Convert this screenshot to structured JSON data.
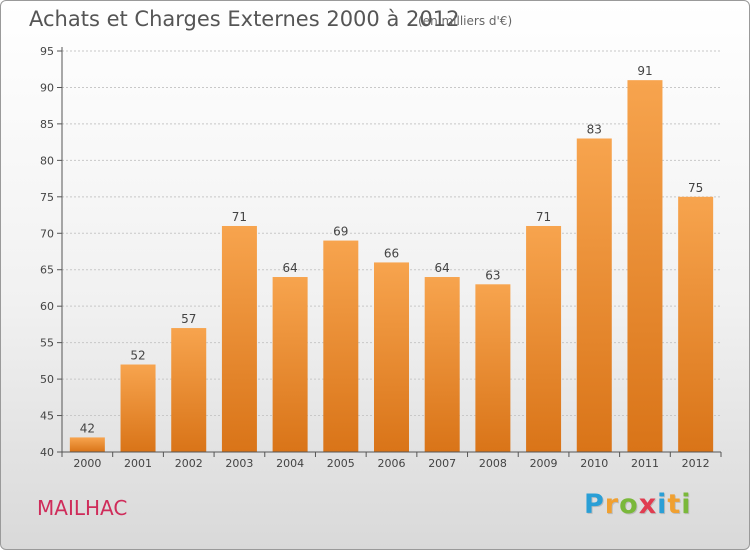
{
  "title": "Achats et Charges Externes 2000 à 2012",
  "subtitle": "(en milliers d'€)",
  "commune": "MAILHAC",
  "logo": {
    "letters": [
      "P",
      "r",
      "o",
      "x",
      "i",
      "t",
      "i"
    ],
    "colors": [
      "#2a9fd6",
      "#f0a030",
      "#7ab83a",
      "#e03c50",
      "#2a9fd6",
      "#f0a030",
      "#7ab83a"
    ]
  },
  "colors": {
    "bar_top": "#f7a44e",
    "bar_bottom": "#d97418",
    "grid": "#c8c8c8",
    "axis": "#555555",
    "label": "#444444"
  },
  "chart_data": {
    "type": "bar",
    "categories": [
      "2000",
      "2001",
      "2002",
      "2003",
      "2004",
      "2005",
      "2006",
      "2007",
      "2008",
      "2009",
      "2010",
      "2011",
      "2012"
    ],
    "values": [
      42,
      52,
      57,
      71,
      64,
      69,
      66,
      64,
      63,
      71,
      83,
      91,
      75
    ],
    "title": "Achats et Charges Externes 2000 à 2012",
    "subtitle": "(en milliers d'€)",
    "xlabel": "",
    "ylabel": "",
    "ylim": [
      40,
      95
    ],
    "yticks": [
      40,
      45,
      50,
      55,
      60,
      65,
      70,
      75,
      80,
      85,
      90,
      95
    ],
    "grid": true,
    "data_labels": true
  }
}
